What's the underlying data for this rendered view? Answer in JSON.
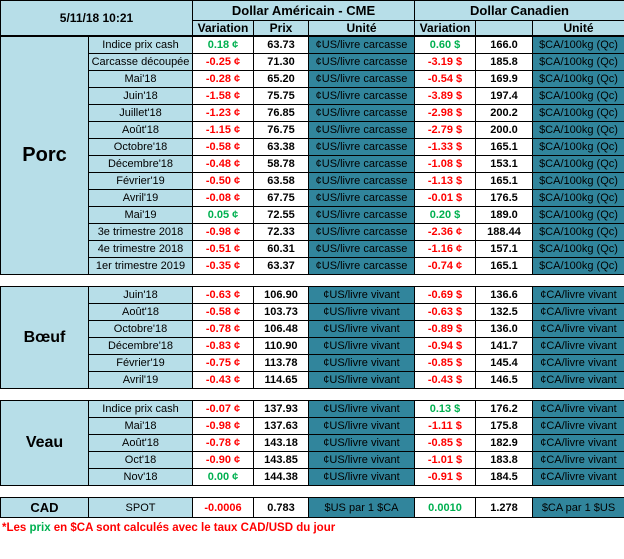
{
  "header": {
    "datetime": "5/11/18 10:21",
    "usd_title": "Dollar Américain - CME",
    "cad_title": "Dollar Canadien",
    "col_variation": "Variation",
    "col_prix": "Prix",
    "col_unite": "Unité"
  },
  "colors": {
    "positive": "#00B050",
    "negative": "#FF0000",
    "light_blue": "#B7DEE8",
    "teal": "#31859C",
    "title_navy": "#17375E"
  },
  "sections": [
    {
      "id": "porc",
      "name": "Porc",
      "unit_us": "¢US/livre carcasse",
      "unit_ca": "$CA/100kg (Qc)",
      "rows": [
        {
          "label": "Indice prix cash",
          "var_us": "0.18 ¢",
          "prix_us": "63.73",
          "var_ca": "0.60 $",
          "prix_ca": "166.0"
        },
        {
          "label": "Carcasse découpée",
          "var_us": "-0.25 ¢",
          "prix_us": "71.30",
          "var_ca": "-3.19 $",
          "prix_ca": "185.8"
        },
        {
          "label": "Mai'18",
          "var_us": "-0.28 ¢",
          "prix_us": "65.20",
          "var_ca": "-0.54 $",
          "prix_ca": "169.9"
        },
        {
          "label": "Juin'18",
          "var_us": "-1.58 ¢",
          "prix_us": "75.75",
          "var_ca": "-3.89 $",
          "prix_ca": "197.4"
        },
        {
          "label": "Juillet'18",
          "var_us": "-1.23 ¢",
          "prix_us": "76.85",
          "var_ca": "-2.98 $",
          "prix_ca": "200.2"
        },
        {
          "label": "Août'18",
          "var_us": "-1.15 ¢",
          "prix_us": "76.75",
          "var_ca": "-2.79 $",
          "prix_ca": "200.0"
        },
        {
          "label": "Octobre'18",
          "var_us": "-0.58 ¢",
          "prix_us": "63.38",
          "var_ca": "-1.33 $",
          "prix_ca": "165.1"
        },
        {
          "label": "Décembre'18",
          "var_us": "-0.48 ¢",
          "prix_us": "58.78",
          "var_ca": "-1.08 $",
          "prix_ca": "153.1"
        },
        {
          "label": "Février'19",
          "var_us": "-0.50 ¢",
          "prix_us": "63.58",
          "var_ca": "-1.13 $",
          "prix_ca": "165.1"
        },
        {
          "label": "Avril'19",
          "var_us": "-0.08 ¢",
          "prix_us": "67.75",
          "var_ca": "-0.01 $",
          "prix_ca": "176.5"
        },
        {
          "label": "Mai'19",
          "var_us": "0.05 ¢",
          "prix_us": "72.55",
          "var_ca": "0.20 $",
          "prix_ca": "189.0"
        },
        {
          "label": "3e trimestre 2018",
          "var_us": "-0.98 ¢",
          "prix_us": "72.33",
          "var_ca": "-2.36 ¢",
          "prix_ca": "188.44"
        },
        {
          "label": "4e trimestre 2018",
          "var_us": "-0.51 ¢",
          "prix_us": "60.31",
          "var_ca": "-1.16 ¢",
          "prix_ca": "157.1"
        },
        {
          "label": "1er trimestre 2019",
          "var_us": "-0.35 ¢",
          "prix_us": "63.37",
          "var_ca": "-0.74 ¢",
          "prix_ca": "165.1"
        }
      ]
    },
    {
      "id": "boeuf",
      "name": "Bœuf",
      "unit_us": "¢US/livre vivant",
      "unit_ca": "¢CA/livre vivant",
      "rows": [
        {
          "label": "Juin'18",
          "var_us": "-0.63 ¢",
          "prix_us": "106.90",
          "var_ca": "-0.69 $",
          "prix_ca": "136.6"
        },
        {
          "label": "Août'18",
          "var_us": "-0.58 ¢",
          "prix_us": "103.73",
          "var_ca": "-0.63 $",
          "prix_ca": "132.5"
        },
        {
          "label": "Octobre'18",
          "var_us": "-0.78 ¢",
          "prix_us": "106.48",
          "var_ca": "-0.89 $",
          "prix_ca": "136.0"
        },
        {
          "label": "Décembre'18",
          "var_us": "-0.83 ¢",
          "prix_us": "110.90",
          "var_ca": "-0.94 $",
          "prix_ca": "141.7"
        },
        {
          "label": "Février'19",
          "var_us": "-0.75 ¢",
          "prix_us": "113.78",
          "var_ca": "-0.85 $",
          "prix_ca": "145.4"
        },
        {
          "label": "Avril'19",
          "var_us": "-0.43 ¢",
          "prix_us": "114.65",
          "var_ca": "-0.43 $",
          "prix_ca": "146.5"
        }
      ]
    },
    {
      "id": "veau",
      "name": "Veau",
      "unit_us": "¢US/livre vivant",
      "unit_ca": "¢CA/livre vivant",
      "rows": [
        {
          "label": "Indice prix cash",
          "var_us": "-0.07 ¢",
          "prix_us": "137.93",
          "var_ca": "0.13 $",
          "prix_ca": "176.2"
        },
        {
          "label": "Mai'18",
          "var_us": "-0.98 ¢",
          "prix_us": "137.63",
          "var_ca": "-1.11 $",
          "prix_ca": "175.8"
        },
        {
          "label": "Août'18",
          "var_us": "-0.78 ¢",
          "prix_us": "143.18",
          "var_ca": "-0.85 $",
          "prix_ca": "182.9"
        },
        {
          "label": "Oct'18",
          "var_us": "-0.90 ¢",
          "prix_us": "143.85",
          "var_ca": "-1.01 $",
          "prix_ca": "183.8"
        },
        {
          "label": "Nov'18",
          "var_us": "0.00 ¢",
          "prix_us": "144.38",
          "var_ca": "-0.91 $",
          "prix_ca": "184.5"
        }
      ]
    },
    {
      "id": "cad",
      "name": "CAD",
      "unit_us": "$US par 1 $CA",
      "unit_ca": "$CA par 1 $US",
      "rows": [
        {
          "label": "SPOT",
          "var_us": "-0.0006",
          "prix_us": "0.783",
          "var_ca": "0.0010",
          "prix_ca": "1.278"
        }
      ]
    }
  ],
  "footnote": {
    "part1": "*Les ",
    "highlight": "prix",
    "part2": " en $CA sont calculés avec le taux CAD/USD du jour"
  }
}
